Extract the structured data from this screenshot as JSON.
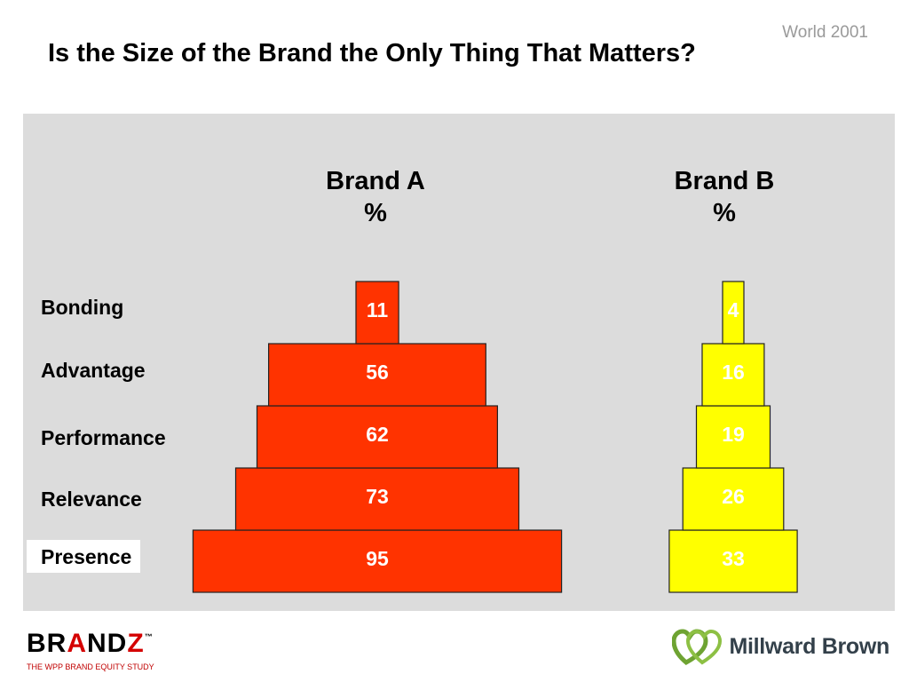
{
  "header": {
    "corner_label": "World 2001",
    "title": "Is the Size of the Brand the Only Thing That Matters?"
  },
  "chart_data": {
    "type": "bar",
    "categories": [
      "Presence",
      "Relevance",
      "Performance",
      "Advantage",
      "Bonding"
    ],
    "series": [
      {
        "name": "Brand A",
        "unit": "%",
        "values": [
          95,
          73,
          62,
          56,
          11
        ],
        "color": "#ff3300",
        "label_color": "#ffffff"
      },
      {
        "name": "Brand B",
        "unit": "%",
        "values": [
          33,
          26,
          19,
          16,
          4
        ],
        "color": "#ffff00",
        "label_color": "#ffffff"
      }
    ],
    "layout_style": "stacked pyramid",
    "highlighted_category": "Presence"
  },
  "footer": {
    "brandz_parts": [
      "BR",
      "A",
      "ND",
      "Z"
    ],
    "brandz_tm": "™",
    "brandz_subtitle": "THE WPP BRAND EQUITY STUDY",
    "mb_name": "Millward Brown",
    "mb_color": "#6ea332"
  }
}
